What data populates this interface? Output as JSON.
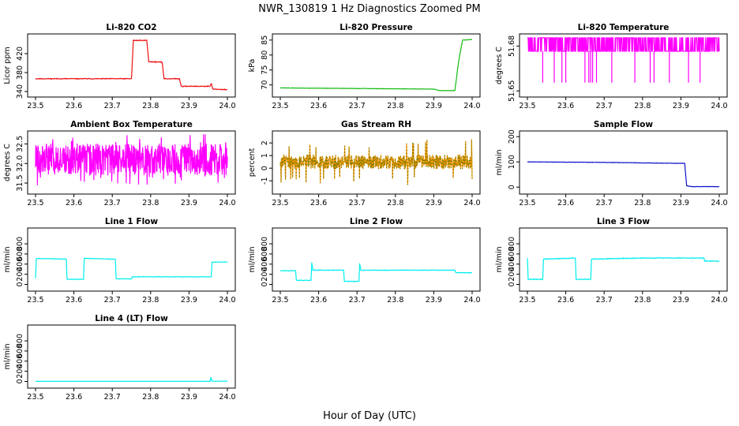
{
  "figure": {
    "title": "NWR_130819  1 Hz Diagnostics Zoomed PM",
    "xlabel": "Hour of Day (UTC)"
  },
  "chart_data": [
    {
      "type": "line",
      "title": "Li-820 CO2",
      "ylabel": "Licor ppm",
      "xlim": [
        23.5,
        24.0
      ],
      "x_ticks": [
        "23.5",
        "23.6",
        "23.7",
        "23.8",
        "23.9",
        "24.0"
      ],
      "ylim": [
        335,
        455
      ],
      "y_ticks": [
        "340",
        "380",
        "420"
      ],
      "y_tick_values": [
        340,
        380,
        420
      ],
      "color": "#ee1111",
      "noise": 1.2,
      "seed": 11,
      "points": [
        [
          23.5,
          367
        ],
        [
          23.75,
          367
        ],
        [
          23.755,
          448
        ],
        [
          23.79,
          448
        ],
        [
          23.795,
          403
        ],
        [
          23.83,
          402
        ],
        [
          23.835,
          367
        ],
        [
          23.875,
          367
        ],
        [
          23.88,
          351
        ],
        [
          23.955,
          351
        ],
        [
          23.958,
          357
        ],
        [
          23.962,
          345
        ],
        [
          24.0,
          344
        ]
      ]
    },
    {
      "type": "line",
      "title": "Li-820 Pressure",
      "ylabel": "kPa",
      "xlim": [
        23.5,
        24.0
      ],
      "x_ticks": [
        "23.5",
        "23.6",
        "23.7",
        "23.8",
        "23.9",
        "24.0"
      ],
      "ylim": [
        67,
        86
      ],
      "y_ticks": [
        "70",
        "75",
        "80",
        "85"
      ],
      "y_tick_values": [
        70,
        75,
        80,
        85
      ],
      "color": "#11bb11",
      "noise": 0.08,
      "seed": 22,
      "points": [
        [
          23.5,
          69
        ],
        [
          23.7,
          68.8
        ],
        [
          23.9,
          68.6
        ],
        [
          23.915,
          68.1
        ],
        [
          23.955,
          68.1
        ],
        [
          23.965,
          78
        ],
        [
          23.975,
          85
        ],
        [
          24.0,
          85.2
        ]
      ]
    },
    {
      "type": "line",
      "title": "Li-820 Temperature",
      "ylabel": "degrees C",
      "xlim": [
        23.5,
        24.0
      ],
      "x_ticks": [
        "23.5",
        "23.6",
        "23.7",
        "23.8",
        "23.9",
        "24.0"
      ],
      "ylim": [
        51.648,
        51.686
      ],
      "y_ticks": [
        "51.65",
        "51.68"
      ],
      "y_tick_values": [
        51.65,
        51.68
      ],
      "color": "#ff00ff",
      "style": "quantized",
      "levels": [
        51.6855,
        51.6765
      ],
      "dropLevel": 51.6555,
      "drops": [
        23.54,
        23.57,
        23.59,
        23.6,
        23.65,
        23.66,
        23.665,
        23.67,
        23.68,
        23.72,
        23.78,
        23.82,
        23.83,
        23.87,
        23.92,
        23.95
      ],
      "seed": 33
    },
    {
      "type": "line",
      "title": "Ambient Box Temperature",
      "ylabel": "degrees C",
      "xlim": [
        23.5,
        24.0
      ],
      "x_ticks": [
        "23.5",
        "23.6",
        "23.7",
        "23.8",
        "23.9",
        "24.0"
      ],
      "ylim": [
        31.3,
        32.75
      ],
      "y_ticks": [
        "31.5",
        "32.0",
        "32.5"
      ],
      "y_tick_values": [
        31.5,
        32.0,
        32.5
      ],
      "color": "#ff00ff",
      "style": "noisy",
      "base": 32.1,
      "amplitude": 0.4,
      "spike": 0.65,
      "seed": 44
    },
    {
      "type": "line",
      "title": "Gas Stream RH",
      "ylabel": "percent",
      "xlim": [
        23.5,
        24.0
      ],
      "x_ticks": [
        "23.5",
        "23.6",
        "23.7",
        "23.8",
        "23.9",
        "24.0"
      ],
      "ylim": [
        -1.8,
        2.7
      ],
      "y_ticks": [
        "-1",
        "0",
        "1",
        "2"
      ],
      "y_tick_values": [
        -1,
        0,
        1,
        2
      ],
      "color": "#ff9900",
      "color2": "#667700",
      "style": "noisy",
      "base": 0.5,
      "amplitude": 0.55,
      "spike": 1.8,
      "seed": 55
    },
    {
      "type": "line",
      "title": "Sample Flow",
      "ylabel": "ml/min",
      "xlim": [
        23.5,
        24.0
      ],
      "x_ticks": [
        "23.5",
        "23.6",
        "23.7",
        "23.8",
        "23.9",
        "24.0"
      ],
      "ylim": [
        -15,
        210
      ],
      "y_ticks": [
        "0",
        "100",
        "200"
      ],
      "y_tick_values": [
        0,
        100,
        200
      ],
      "color": "#1111cc",
      "noise": 1.0,
      "seed": 66,
      "points": [
        [
          23.5,
          100
        ],
        [
          23.7,
          98
        ],
        [
          23.8,
          96
        ],
        [
          23.91,
          94
        ],
        [
          23.915,
          5
        ],
        [
          23.93,
          2
        ],
        [
          24.0,
          2
        ]
      ]
    },
    {
      "type": "line",
      "title": "Line 1 Flow",
      "ylabel": "ml/min",
      "xlim": [
        23.5,
        24.0
      ],
      "x_ticks": [
        "23.5",
        "23.6",
        "23.7",
        "23.8",
        "23.9",
        "24.0"
      ],
      "ylim": [
        -70,
        1050
      ],
      "y_ticks": [
        "0",
        "200",
        "400",
        "600",
        "800"
      ],
      "y_tick_values": [
        0,
        200,
        400,
        600,
        800
      ],
      "color": "#00eeee",
      "noise": 6,
      "seed": 77,
      "points": [
        [
          23.5,
          120
        ],
        [
          23.502,
          510
        ],
        [
          23.58,
          500
        ],
        [
          23.582,
          100
        ],
        [
          23.625,
          100
        ],
        [
          23.627,
          515
        ],
        [
          23.708,
          495
        ],
        [
          23.71,
          110
        ],
        [
          23.75,
          108
        ],
        [
          23.752,
          150
        ],
        [
          23.958,
          150
        ],
        [
          23.96,
          440
        ],
        [
          24.0,
          440
        ]
      ]
    },
    {
      "type": "line",
      "title": "Line 2 Flow",
      "ylabel": "ml/min",
      "xlim": [
        23.5,
        24.0
      ],
      "x_ticks": [
        "23.5",
        "23.6",
        "23.7",
        "23.8",
        "23.9",
        "24.0"
      ],
      "ylim": [
        -70,
        1050
      ],
      "y_ticks": [
        "0",
        "200",
        "400",
        "600",
        "800"
      ],
      "y_tick_values": [
        0,
        200,
        400,
        600,
        800
      ],
      "color": "#00eeee",
      "noise": 8,
      "seed": 88,
      "points": [
        [
          23.5,
          270
        ],
        [
          23.54,
          270
        ],
        [
          23.542,
          80
        ],
        [
          23.58,
          80
        ],
        [
          23.582,
          420
        ],
        [
          23.585,
          280
        ],
        [
          23.665,
          280
        ],
        [
          23.667,
          60
        ],
        [
          23.705,
          60
        ],
        [
          23.707,
          410
        ],
        [
          23.71,
          280
        ],
        [
          23.955,
          280
        ],
        [
          23.957,
          230
        ],
        [
          24.0,
          230
        ]
      ]
    },
    {
      "type": "line",
      "title": "Line 3 Flow",
      "ylabel": "ml/min",
      "xlim": [
        23.5,
        24.0
      ],
      "x_ticks": [
        "23.5",
        "23.6",
        "23.7",
        "23.8",
        "23.9",
        "24.0"
      ],
      "ylim": [
        -70,
        1050
      ],
      "y_ticks": [
        "0",
        "200",
        "400",
        "600",
        "800"
      ],
      "y_tick_values": [
        0,
        200,
        400,
        600,
        800
      ],
      "color": "#00eeee",
      "noise": 10,
      "seed": 99,
      "points": [
        [
          23.5,
          520
        ],
        [
          23.502,
          100
        ],
        [
          23.54,
          100
        ],
        [
          23.542,
          500
        ],
        [
          23.625,
          520
        ],
        [
          23.627,
          100
        ],
        [
          23.665,
          100
        ],
        [
          23.667,
          500
        ],
        [
          23.8,
          520
        ],
        [
          23.96,
          520
        ],
        [
          23.962,
          460
        ],
        [
          24.0,
          460
        ]
      ]
    },
    {
      "type": "line",
      "title": "Line 4 (LT) Flow",
      "ylabel": "ml/min",
      "xlim": [
        23.5,
        24.0
      ],
      "x_ticks": [
        "23.5",
        "23.6",
        "23.7",
        "23.8",
        "23.9",
        "24.0"
      ],
      "ylim": [
        -70,
        1050
      ],
      "y_ticks": [
        "0",
        "200",
        "400",
        "600",
        "800"
      ],
      "y_tick_values": [
        0,
        200,
        400,
        600,
        800
      ],
      "color": "#00eeee",
      "noise": 2,
      "seed": 111,
      "points": [
        [
          23.5,
          2
        ],
        [
          23.955,
          2
        ],
        [
          23.957,
          80
        ],
        [
          23.96,
          5
        ],
        [
          24.0,
          5
        ]
      ]
    }
  ]
}
